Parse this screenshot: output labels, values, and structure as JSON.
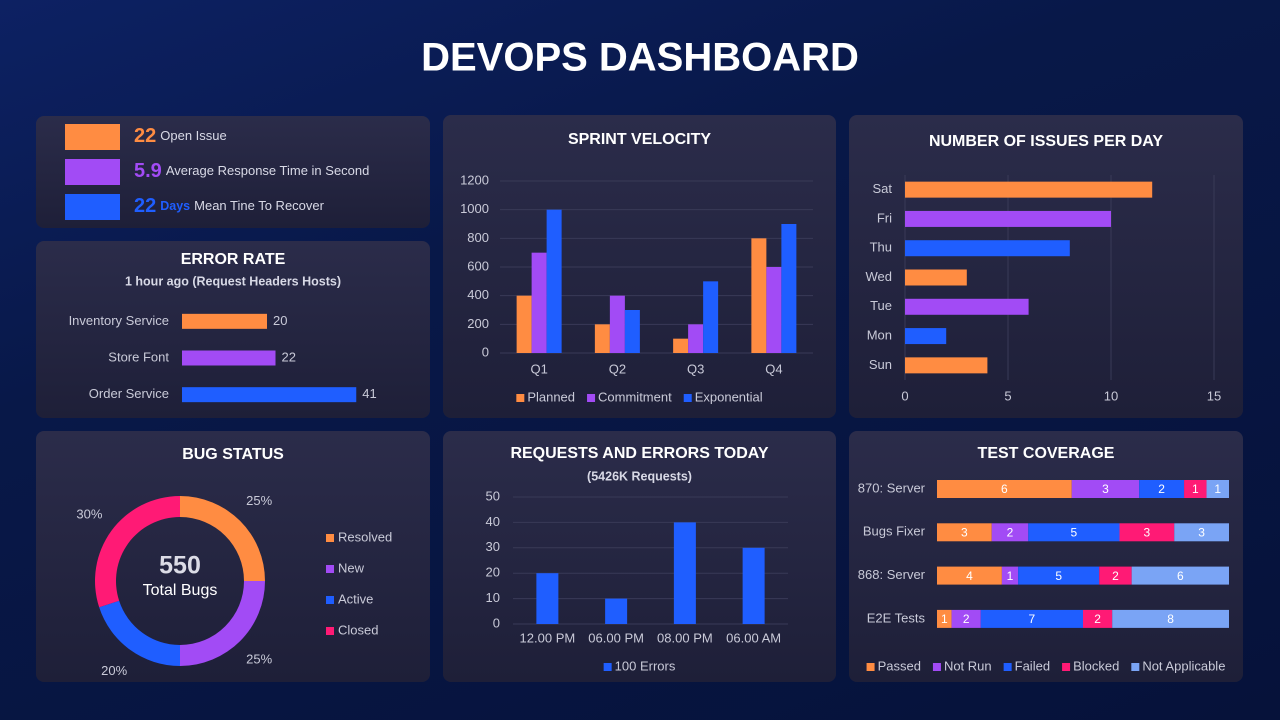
{
  "title": "DEVOPS DASHBOARD",
  "kpis": [
    {
      "value": 22,
      "label": "Open Issue",
      "color": "#ff8c42"
    },
    {
      "value": 5.9,
      "label": "Average Response Time in Second",
      "color": "#a24bf5"
    },
    {
      "value": 22,
      "unit": "Days",
      "label": "Mean Tine To Recover",
      "color": "#1f5eff"
    }
  ],
  "chart_data": [
    {
      "type": "barh",
      "title": "ERROR RATE",
      "subtitle": "1 hour ago (Request Headers Hosts)",
      "categories": [
        "Inventory Service",
        "Store Font",
        "Order Service"
      ],
      "values": [
        20,
        22,
        41
      ],
      "colors": [
        "#ff8c42",
        "#a24bf5",
        "#1f5eff"
      ],
      "xlim": [
        0,
        50
      ],
      "data_labels": true
    },
    {
      "type": "bar",
      "title": "SPRINT VELOCITY",
      "categories": [
        "Q1",
        "Q2",
        "Q3",
        "Q4"
      ],
      "series": [
        {
          "name": "Planned",
          "color": "#ff8c42",
          "values": [
            400,
            200,
            100,
            800
          ]
        },
        {
          "name": "Commitment",
          "color": "#a24bf5",
          "values": [
            700,
            400,
            200,
            600
          ]
        },
        {
          "name": "Exponential",
          "color": "#1f5eff",
          "values": [
            1000,
            300,
            500,
            900
          ]
        }
      ],
      "ylim": [
        0,
        1200
      ],
      "yticks": [
        0,
        200,
        400,
        600,
        800,
        1000,
        1200
      ],
      "grid": true,
      "legend": "bottom"
    },
    {
      "type": "barh",
      "title": "NUMBER OF ISSUES PER DAY",
      "categories": [
        "Sat",
        "Fri",
        "Thu",
        "Wed",
        "Tue",
        "Mon",
        "Sun"
      ],
      "values": [
        12,
        10,
        8,
        3,
        6,
        2,
        4
      ],
      "colors": [
        "#ff8c42",
        "#a24bf5",
        "#1f5eff",
        "#ff8c42",
        "#a24bf5",
        "#1f5eff",
        "#ff8c42"
      ],
      "xlim": [
        0,
        15
      ],
      "xticks": [
        0,
        5,
        10,
        15
      ],
      "grid": true
    },
    {
      "type": "donut",
      "title": "BUG STATUS",
      "total": 550,
      "total_label": "Total Bugs",
      "categories": [
        "Resolved",
        "New",
        "Active",
        "Closed"
      ],
      "values": [
        25,
        25,
        20,
        30
      ],
      "value_labels": [
        "25%",
        "25%",
        "20%",
        "30%"
      ],
      "colors": [
        "#ff8c42",
        "#a24bf5",
        "#1f5eff",
        "#ff1a75"
      ],
      "legend": "right"
    },
    {
      "type": "bar",
      "title": "REQUESTS AND ERRORS TODAY",
      "subtitle": "(5426K Requests)",
      "categories": [
        "12.00 PM",
        "06.00 PM",
        "08.00 PM",
        "06.00 AM"
      ],
      "series": [
        {
          "name": "100 Errors",
          "color": "#1f5eff",
          "values": [
            20,
            10,
            40,
            30
          ]
        }
      ],
      "ylim": [
        0,
        50
      ],
      "yticks": [
        0,
        10,
        20,
        30,
        40,
        50
      ],
      "grid": true,
      "legend": "bottom"
    },
    {
      "type": "stackedbarh",
      "title": "TEST COVERAGE",
      "stacking": "percent",
      "categories": [
        "870: Server",
        "Bugs Fixer",
        "868: Server",
        "E2E Tests"
      ],
      "series": [
        {
          "name": "Passed",
          "color": "#ff8c42",
          "values": [
            6,
            3,
            4,
            1
          ]
        },
        {
          "name": "Not Run",
          "color": "#a24bf5",
          "values": [
            3,
            2,
            1,
            2
          ]
        },
        {
          "name": "Failed",
          "color": "#1f5eff",
          "values": [
            2,
            5,
            5,
            7
          ]
        },
        {
          "name": "Blocked",
          "color": "#ff1a75",
          "values": [
            1,
            3,
            2,
            2
          ]
        },
        {
          "name": "Not Applicable",
          "color": "#7aa4f5",
          "values": [
            1,
            3,
            6,
            8
          ]
        }
      ],
      "legend": "bottom"
    }
  ]
}
